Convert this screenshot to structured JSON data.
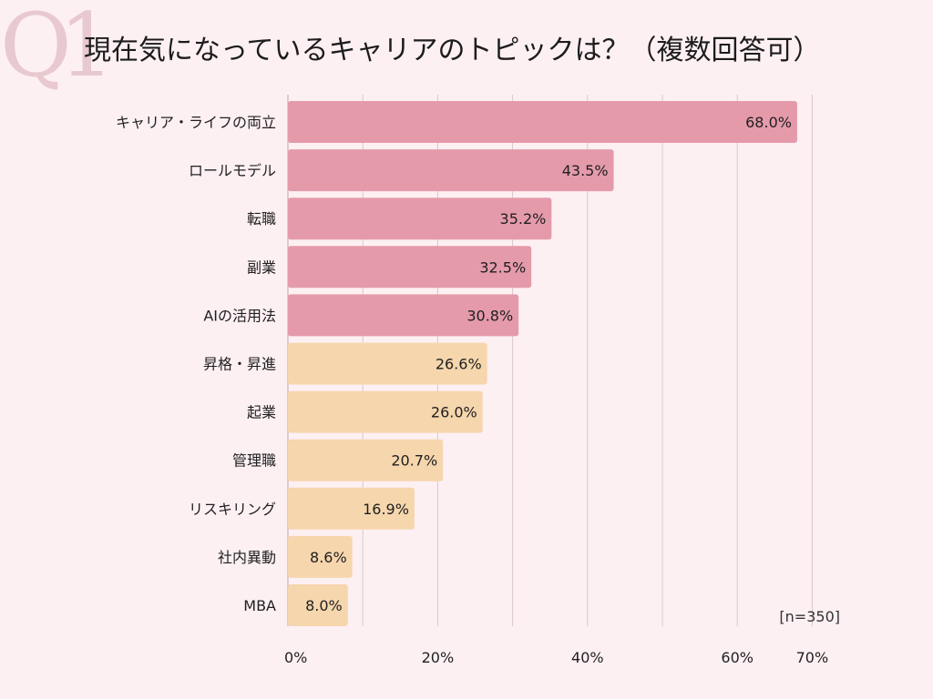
{
  "q_mark": "Q1",
  "title": "現在気になっているキャリアのトピックは？（複数回答可）",
  "sample_note": "[n=350]",
  "colors": {
    "background": "#fdf0f3",
    "bar_pink": "#e59aaa",
    "bar_peach": "#f6d6ad",
    "gridline": "#d9c7cc",
    "axis": "#c7b3b8"
  },
  "chart_data": {
    "type": "bar",
    "orientation": "horizontal",
    "title": "現在気になっているキャリアのトピックは？（複数回答可）",
    "xlabel": "",
    "ylabel": "",
    "xlim": [
      0,
      70
    ],
    "x_ticks": [
      0,
      20,
      40,
      60,
      70
    ],
    "x_tick_labels": [
      "0%",
      "20%",
      "40%",
      "60%",
      "70%"
    ],
    "grid": true,
    "categories": [
      "キャリア・ライフの両立",
      "ロールモデル",
      "転職",
      "副業",
      "AIの活用法",
      "昇格・昇進",
      "起業",
      "管理職",
      "リスキリング",
      "社内異動",
      "MBA"
    ],
    "values": [
      68.0,
      43.5,
      35.2,
      32.5,
      30.8,
      26.6,
      26.0,
      20.7,
      16.9,
      8.6,
      8.0
    ],
    "value_labels": [
      "68.0%",
      "43.5%",
      "35.2%",
      "32.5%",
      "30.8%",
      "26.6%",
      "26.0%",
      "20.7%",
      "16.9%",
      "8.6%",
      "8.0%"
    ],
    "bar_groups": [
      "pink",
      "pink",
      "pink",
      "pink",
      "pink",
      "peach",
      "peach",
      "peach",
      "peach",
      "peach",
      "peach"
    ]
  }
}
